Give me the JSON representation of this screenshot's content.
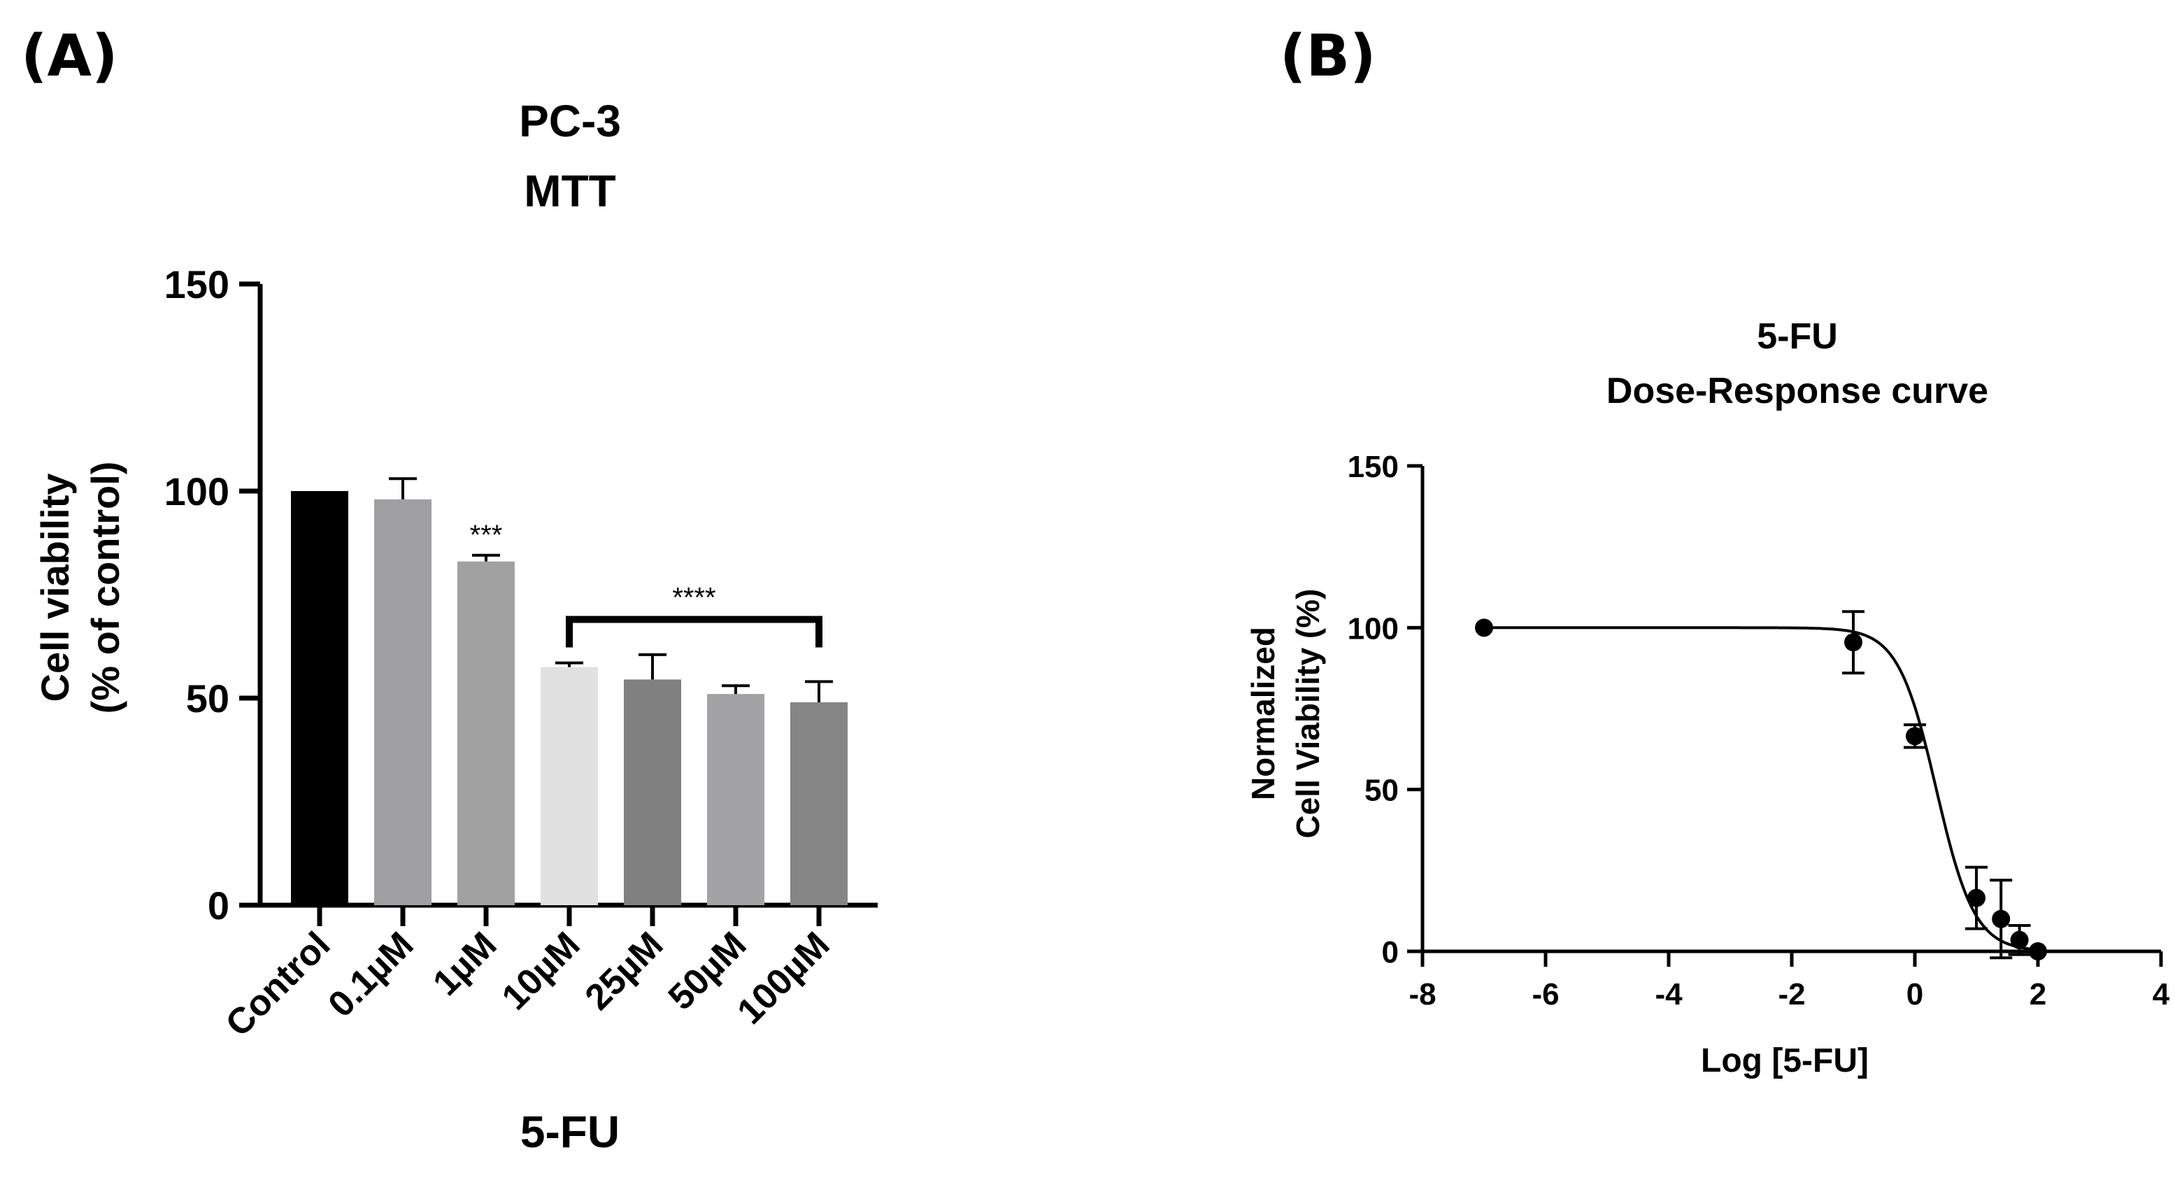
{
  "chart_data": [
    {
      "panel_label": "(A)",
      "type": "bar",
      "title": [
        "PC-3",
        "MTT"
      ],
      "xlabel": "5-FU",
      "ylabel": [
        "Cell viability",
        "(% of control)"
      ],
      "ylim": [
        0,
        150
      ],
      "yticks": [
        "0",
        "50",
        "100",
        "150"
      ],
      "categories": [
        "Control",
        "0.1µM",
        "1µM",
        "10µM",
        "25µM",
        "50µM",
        "100µM"
      ],
      "values": [
        100,
        98,
        83,
        57.5,
        54.5,
        51,
        49
      ],
      "errors": [
        0,
        5,
        1.5,
        1,
        6,
        2,
        5
      ],
      "colors": [
        "#000000",
        "#a0a0a3",
        "#a1a1a1",
        "#e1e1e1",
        "#808080",
        "#a3a3a6",
        "#858585"
      ],
      "annotations": [
        {
          "text": "***",
          "category": "1µM"
        },
        {
          "text": "****",
          "bracket_from": "10µM",
          "bracket_to": "100µM"
        }
      ]
    },
    {
      "panel_label": "(B)",
      "type": "scatter",
      "title": [
        "5-FU",
        "Dose-Response curve"
      ],
      "xlabel": "Log [5-FU]",
      "ylabel": [
        "Normalized",
        "Cell Viability (%)"
      ],
      "xlim": [
        -8,
        4
      ],
      "ylim": [
        0,
        150
      ],
      "xticks": [
        "-8",
        "-6",
        "-4",
        "-2",
        "0",
        "2",
        "4"
      ],
      "yticks": [
        "0",
        "50",
        "100",
        "150"
      ],
      "points": [
        {
          "x": -7,
          "y": 100,
          "err": 0
        },
        {
          "x": -1,
          "y": 95.5,
          "err": 9.5
        },
        {
          "x": 0,
          "y": 66.5,
          "err": 3.5
        },
        {
          "x": 1,
          "y": 16.5,
          "err": 9.5
        },
        {
          "x": 1.4,
          "y": 10,
          "err": 12
        },
        {
          "x": 1.7,
          "y": 3.5,
          "err": 4.5
        },
        {
          "x": 2,
          "y": 0,
          "err": 0
        }
      ],
      "fit": {
        "top": 100,
        "bottom": 0,
        "logIC50": 0.35,
        "hill": -1.4
      }
    }
  ]
}
